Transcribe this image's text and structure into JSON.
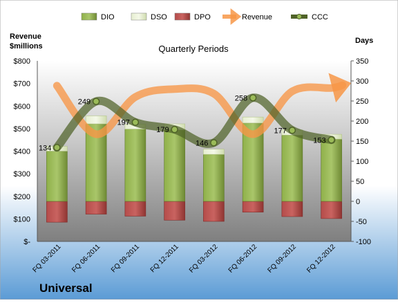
{
  "company": "Universal",
  "chart_data": {
    "type": "bar",
    "title": "Quarterly Periods",
    "y_left_label": [
      "Revenue",
      "$millions"
    ],
    "y_right_label": "Days",
    "categories": [
      "FQ 03-2011",
      "FQ 06-2011",
      "FQ 09-2011",
      "FQ 12-2011",
      "FQ 03-2012",
      "FQ 06-2012",
      "FQ 09-2012",
      "FQ 12-2012"
    ],
    "left_axis": {
      "min": 0,
      "max": 800,
      "ticks": [
        "$-",
        "$100",
        "$200",
        "$300",
        "$400",
        "$500",
        "$600",
        "$700",
        "$800"
      ]
    },
    "right_axis": {
      "min": -100,
      "max": 350,
      "ticks": [
        "-100",
        "-50",
        "0",
        "50",
        "100",
        "150",
        "200",
        "250",
        "300",
        "350"
      ]
    },
    "legend": [
      {
        "name": "DIO",
        "color": "#77933c"
      },
      {
        "name": "DSO",
        "color": "#d7e4bd"
      },
      {
        "name": "DPO",
        "color": "#953735"
      },
      {
        "name": "Revenue",
        "color": "#f79646"
      },
      {
        "name": "CCC",
        "color": "#4f6228"
      }
    ],
    "series": [
      {
        "name": "DIO",
        "axis": "right",
        "values": [
          125,
          193,
          180,
          178,
          117,
          195,
          165,
          155
        ]
      },
      {
        "name": "DSO",
        "axis": "right",
        "values": [
          12,
          20,
          12,
          15,
          13,
          15,
          13,
          12
        ]
      },
      {
        "name": "DPO",
        "axis": "right",
        "values": [
          -52,
          -32,
          -37,
          -47,
          -50,
          -27,
          -38,
          -43
        ]
      },
      {
        "name": "Revenue",
        "axis": "left",
        "values": [
          690,
          475,
          640,
          675,
          655,
          475,
          665,
          680
        ]
      },
      {
        "name": "CCC",
        "axis": "right",
        "values": [
          134,
          249,
          197,
          179,
          146,
          258,
          177,
          153
        ],
        "labels": [
          "134",
          "249",
          "197",
          "179",
          "146",
          "258",
          "177",
          "153"
        ]
      }
    ]
  }
}
